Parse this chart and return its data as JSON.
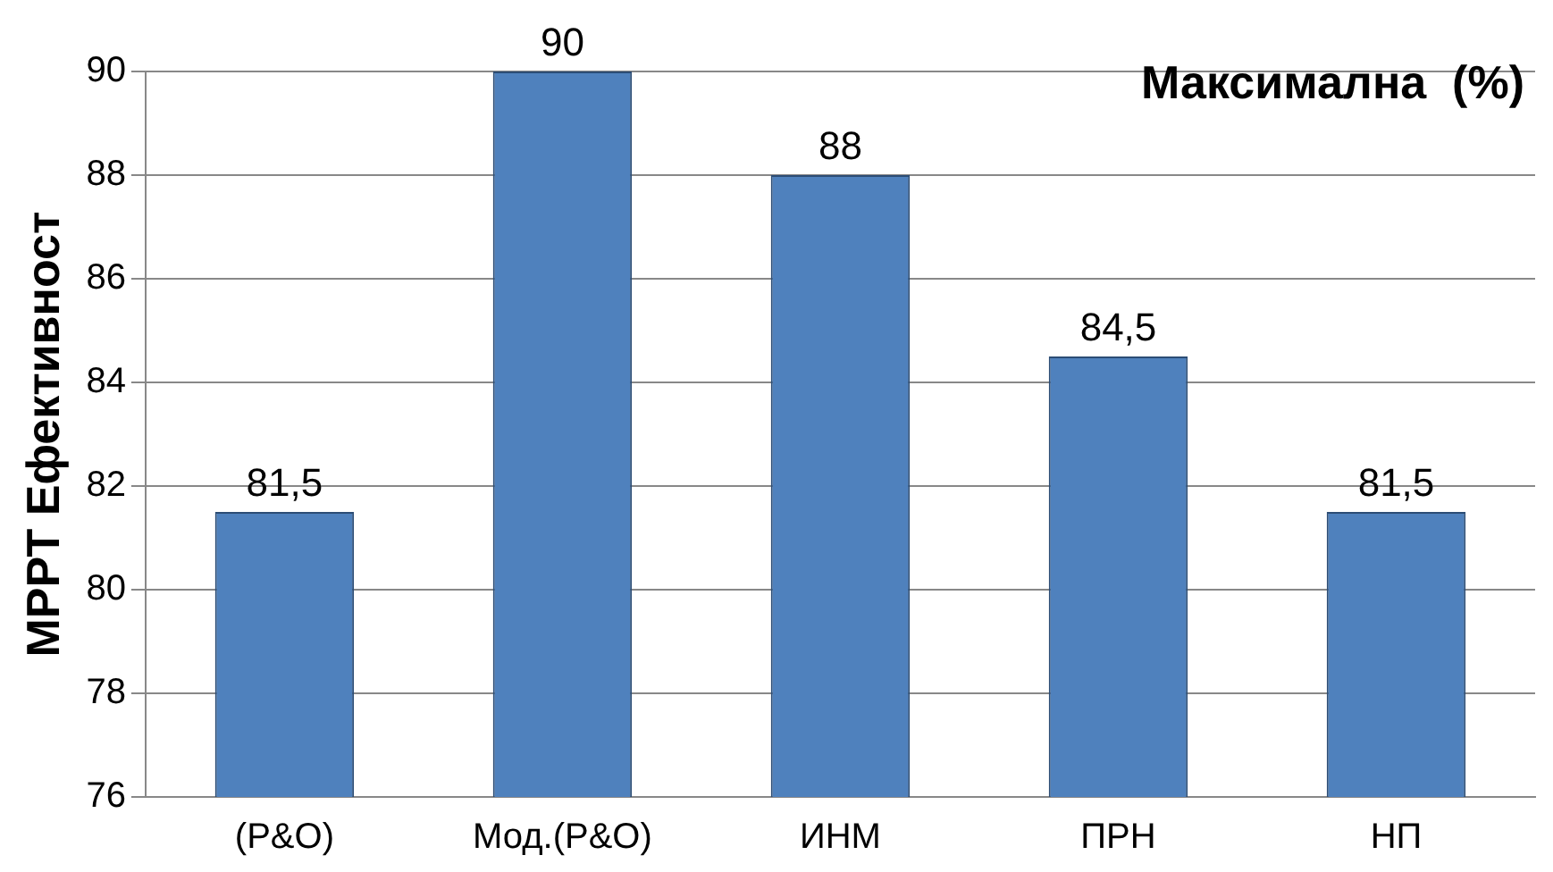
{
  "chart_data": {
    "type": "bar",
    "title": "Максимална  (%)",
    "ylabel": "МРРТ Ефективност",
    "categories": [
      "(P&O)",
      "Мод.(P&O)",
      "ИНМ",
      "ПРН",
      "НП"
    ],
    "values": [
      81.5,
      90,
      88,
      84.5,
      81.5
    ],
    "value_labels": [
      "81,5",
      "90",
      "88",
      "84,5",
      "81,5"
    ],
    "color": "#4f81bd",
    "ylim": [
      76,
      90
    ],
    "yticks": [
      76,
      78,
      80,
      82,
      84,
      86,
      88,
      90
    ],
    "grid": "y",
    "legend": false
  }
}
